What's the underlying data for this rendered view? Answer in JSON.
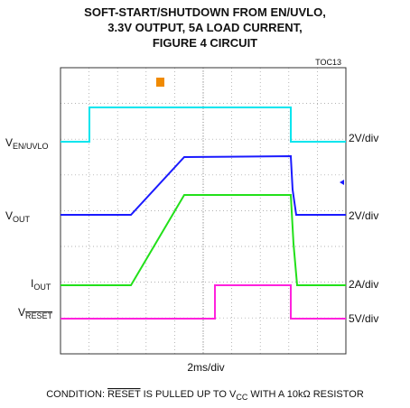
{
  "title": [
    "SOFT-START/SHUTDOWN FROM EN/UVLO,",
    "3.3V OUTPUT, 5A LOAD CURRENT,",
    "FIGURE 4 CIRCUIT"
  ],
  "toc": "TOC13",
  "traces": [
    {
      "label": "V",
      "label_sub": "EN/UVLO",
      "scale": "2V/div"
    },
    {
      "label": "V",
      "label_sub": "OUT",
      "scale": "2V/div"
    },
    {
      "label": "I",
      "label_sub": "OUT",
      "scale": "2A/div"
    },
    {
      "label": "V",
      "label_sub": "RESET",
      "scale": "5V/div"
    }
  ],
  "x_scale": "2ms/div",
  "condition": {
    "before": "CONDITION: ",
    "signal": "RESET",
    "middle": " IS PULLED UP TO V",
    "sub": "CC",
    "after": " WITH A 10kΩ RESISTOR"
  }
}
